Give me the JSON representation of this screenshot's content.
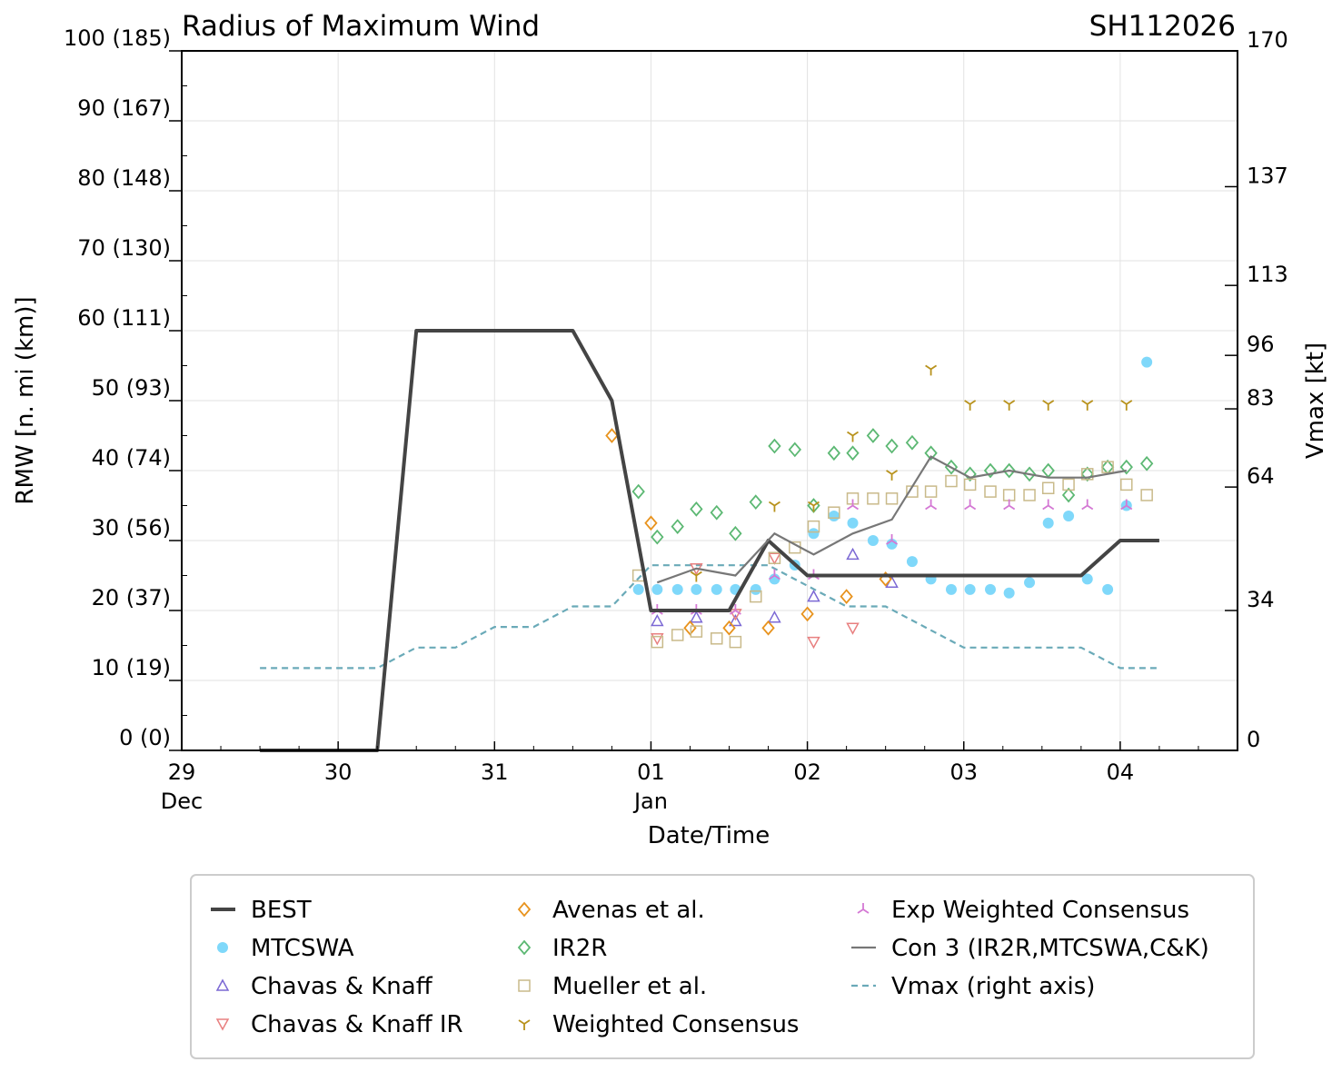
{
  "chart_data": {
    "type": "scatter",
    "title": "Radius of Maximum Wind",
    "storm_id": "SH112026",
    "xlabel": "Date/Time",
    "ylabel": "RMW [n. mi (km)]",
    "y2label": "Vmax [kt]",
    "x_units": "days since 29 Dec 00Z",
    "xlim": [
      0,
      6.75
    ],
    "ylim": [
      0,
      100
    ],
    "y2lim": [
      0,
      170
    ],
    "x_ticks": [
      {
        "x": 0,
        "label": "29",
        "sublabel": "Dec"
      },
      {
        "x": 1,
        "label": "30",
        "sublabel": ""
      },
      {
        "x": 2,
        "label": "31",
        "sublabel": ""
      },
      {
        "x": 3,
        "label": "01",
        "sublabel": "Jan"
      },
      {
        "x": 4,
        "label": "02",
        "sublabel": ""
      },
      {
        "x": 5,
        "label": "03",
        "sublabel": ""
      },
      {
        "x": 6,
        "label": "04",
        "sublabel": ""
      }
    ],
    "y_ticks": [
      {
        "v": 0,
        "label": "0 (0)"
      },
      {
        "v": 10,
        "label": "10 (19)"
      },
      {
        "v": 20,
        "label": "20 (37)"
      },
      {
        "v": 30,
        "label": "30 (56)"
      },
      {
        "v": 40,
        "label": "40 (74)"
      },
      {
        "v": 50,
        "label": "50 (93)"
      },
      {
        "v": 60,
        "label": "60 (111)"
      },
      {
        "v": 70,
        "label": "70 (130)"
      },
      {
        "v": 80,
        "label": "80 (148)"
      },
      {
        "v": 90,
        "label": "90 (167)"
      },
      {
        "v": 100,
        "label": "100 (185)"
      }
    ],
    "y2_ticks": [
      {
        "v": 0,
        "label": "0"
      },
      {
        "v": 34,
        "label": "34"
      },
      {
        "v": 64,
        "label": "64"
      },
      {
        "v": 83,
        "label": "83"
      },
      {
        "v": 96,
        "label": "96"
      },
      {
        "v": 113,
        "label": "113"
      },
      {
        "v": 137,
        "label": "137"
      },
      {
        "v": 170,
        "label": "170"
      }
    ],
    "series": [
      {
        "name": "BEST",
        "kind": "line",
        "color": "#444444",
        "axis": "left",
        "points": [
          [
            0.5,
            0
          ],
          [
            1.25,
            0
          ],
          [
            1.5,
            60
          ],
          [
            2.5,
            60
          ],
          [
            2.75,
            50
          ],
          [
            3.0,
            20
          ],
          [
            3.5,
            20
          ],
          [
            3.75,
            30
          ],
          [
            4.0,
            25
          ],
          [
            4.25,
            25
          ],
          [
            4.5,
            25
          ],
          [
            4.75,
            25
          ],
          [
            5.0,
            25
          ],
          [
            5.25,
            25
          ],
          [
            5.5,
            25
          ],
          [
            5.75,
            25
          ],
          [
            6.0,
            30
          ],
          [
            6.25,
            30
          ]
        ]
      },
      {
        "name": "MTCSWA",
        "kind": "marker",
        "marker": "circle",
        "color": "#7fd8fa",
        "axis": "left",
        "points": [
          [
            2.92,
            23
          ],
          [
            3.04,
            23
          ],
          [
            3.17,
            23
          ],
          [
            3.29,
            23
          ],
          [
            3.42,
            23
          ],
          [
            3.54,
            23
          ],
          [
            3.67,
            23
          ],
          [
            3.79,
            24.5
          ],
          [
            3.92,
            26.5
          ],
          [
            4.04,
            31
          ],
          [
            4.17,
            33.5
          ],
          [
            4.29,
            32.5
          ],
          [
            4.42,
            30
          ],
          [
            4.54,
            29.5
          ],
          [
            4.67,
            27
          ],
          [
            4.79,
            24.5
          ],
          [
            4.92,
            23
          ],
          [
            5.04,
            23
          ],
          [
            5.17,
            23
          ],
          [
            5.29,
            22.5
          ],
          [
            5.42,
            24
          ],
          [
            5.54,
            32.5
          ],
          [
            5.67,
            33.5
          ],
          [
            5.79,
            24.5
          ],
          [
            5.92,
            23
          ],
          [
            6.04,
            35
          ],
          [
            6.17,
            55.5
          ]
        ]
      },
      {
        "name": "Chavas & Knaff",
        "kind": "marker",
        "marker": "triangle-up",
        "color": "#7b68d4",
        "axis": "left",
        "points": [
          [
            3.04,
            18.5
          ],
          [
            3.29,
            19
          ],
          [
            3.54,
            18.5
          ],
          [
            3.79,
            19
          ],
          [
            4.04,
            22
          ],
          [
            4.29,
            28
          ],
          [
            4.54,
            24
          ]
        ]
      },
      {
        "name": "Chavas & Knaff IR",
        "kind": "marker",
        "marker": "triangle-down",
        "color": "#e88080",
        "axis": "left",
        "points": [
          [
            3.04,
            16
          ],
          [
            3.29,
            26
          ],
          [
            3.54,
            19.5
          ],
          [
            3.79,
            27.5
          ],
          [
            4.04,
            15.5
          ],
          [
            4.29,
            17.5
          ]
        ]
      },
      {
        "name": "Avenas et al.",
        "kind": "marker",
        "marker": "diamond",
        "color": "#e8931e",
        "axis": "left",
        "points": [
          [
            2.75,
            45
          ],
          [
            3.0,
            32.5
          ],
          [
            3.25,
            17.5
          ],
          [
            3.5,
            17.5
          ],
          [
            3.75,
            17.5
          ],
          [
            4.0,
            19.5
          ],
          [
            4.25,
            22
          ],
          [
            4.5,
            24.5
          ]
        ]
      },
      {
        "name": "IR2R",
        "kind": "marker",
        "marker": "diamond",
        "color": "#5cb873",
        "axis": "left",
        "points": [
          [
            2.92,
            37
          ],
          [
            3.04,
            30.5
          ],
          [
            3.17,
            32
          ],
          [
            3.29,
            34.5
          ],
          [
            3.42,
            34
          ],
          [
            3.54,
            31
          ],
          [
            3.67,
            35.5
          ],
          [
            3.79,
            43.5
          ],
          [
            3.92,
            43
          ],
          [
            4.04,
            35
          ],
          [
            4.17,
            42.5
          ],
          [
            4.29,
            42.5
          ],
          [
            4.42,
            45
          ],
          [
            4.54,
            43.5
          ],
          [
            4.67,
            44
          ],
          [
            4.79,
            42.5
          ],
          [
            4.92,
            40.5
          ],
          [
            5.04,
            39.5
          ],
          [
            5.17,
            40
          ],
          [
            5.29,
            40
          ],
          [
            5.42,
            39.5
          ],
          [
            5.54,
            40
          ],
          [
            5.67,
            36.5
          ],
          [
            5.79,
            39.5
          ],
          [
            5.92,
            40.5
          ],
          [
            6.04,
            40.5
          ],
          [
            6.17,
            41
          ]
        ]
      },
      {
        "name": "Mueller et al.",
        "kind": "marker",
        "marker": "square",
        "color": "#c9ba8a",
        "axis": "left",
        "points": [
          [
            2.92,
            25
          ],
          [
            3.04,
            15.5
          ],
          [
            3.17,
            16.5
          ],
          [
            3.29,
            17
          ],
          [
            3.42,
            16
          ],
          [
            3.54,
            15.5
          ],
          [
            3.67,
            22
          ],
          [
            3.79,
            27.5
          ],
          [
            3.92,
            29
          ],
          [
            4.04,
            32
          ],
          [
            4.17,
            34
          ],
          [
            4.29,
            36
          ],
          [
            4.42,
            36
          ],
          [
            4.54,
            36
          ],
          [
            4.67,
            37
          ],
          [
            4.79,
            37
          ],
          [
            4.92,
            38.5
          ],
          [
            5.04,
            38
          ],
          [
            5.17,
            37
          ],
          [
            5.29,
            36.5
          ],
          [
            5.42,
            36.5
          ],
          [
            5.54,
            37.5
          ],
          [
            5.67,
            38
          ],
          [
            5.79,
            39.5
          ],
          [
            5.92,
            40.5
          ],
          [
            6.04,
            38
          ],
          [
            6.17,
            36.5
          ]
        ]
      },
      {
        "name": "Weighted Consensus",
        "kind": "marker",
        "marker": "tri-down",
        "color": "#b8921c",
        "axis": "left",
        "points": [
          [
            3.29,
            25
          ],
          [
            3.79,
            35
          ],
          [
            4.04,
            35
          ],
          [
            4.29,
            45
          ],
          [
            4.54,
            39.5
          ],
          [
            4.79,
            54.5
          ],
          [
            5.04,
            49.5
          ],
          [
            5.29,
            49.5
          ],
          [
            5.54,
            49.5
          ],
          [
            5.79,
            49.5
          ],
          [
            6.04,
            49.5
          ]
        ]
      },
      {
        "name": "Exp Weighted Consensus",
        "kind": "marker",
        "marker": "tri-up",
        "color": "#d478d4",
        "axis": "left",
        "points": [
          [
            3.04,
            20
          ],
          [
            3.29,
            20
          ],
          [
            3.54,
            20
          ],
          [
            3.79,
            25
          ],
          [
            4.04,
            25
          ],
          [
            4.29,
            35
          ],
          [
            4.54,
            30
          ],
          [
            4.79,
            35
          ],
          [
            5.04,
            35
          ],
          [
            5.29,
            35
          ],
          [
            5.54,
            35
          ],
          [
            5.79,
            35
          ],
          [
            6.04,
            35
          ]
        ]
      },
      {
        "name": "Con 3 (IR2R,MTCSWA,C&K)",
        "kind": "line",
        "color": "#777777",
        "axis": "left",
        "points": [
          [
            3.04,
            24
          ],
          [
            3.29,
            26
          ],
          [
            3.54,
            25
          ],
          [
            3.79,
            31
          ],
          [
            4.04,
            28
          ],
          [
            4.29,
            31
          ],
          [
            4.54,
            33
          ],
          [
            4.79,
            42
          ],
          [
            5.04,
            39
          ],
          [
            5.29,
            40
          ],
          [
            5.54,
            39
          ],
          [
            5.79,
            39
          ],
          [
            6.04,
            40
          ]
        ]
      },
      {
        "name": "Vmax (right axis)",
        "kind": "dashed-line",
        "color": "#6aaab8",
        "axis": "right",
        "points": [
          [
            0.5,
            20
          ],
          [
            1.25,
            20
          ],
          [
            1.5,
            25
          ],
          [
            1.75,
            25
          ],
          [
            2.0,
            30
          ],
          [
            2.25,
            30
          ],
          [
            2.5,
            35
          ],
          [
            2.75,
            35
          ],
          [
            3.0,
            45
          ],
          [
            3.25,
            45
          ],
          [
            3.5,
            45
          ],
          [
            3.75,
            45
          ],
          [
            4.0,
            40
          ],
          [
            4.25,
            35
          ],
          [
            4.5,
            35
          ],
          [
            4.75,
            30
          ],
          [
            5.0,
            25
          ],
          [
            5.25,
            25
          ],
          [
            5.5,
            25
          ],
          [
            5.75,
            25
          ],
          [
            6.0,
            20
          ],
          [
            6.25,
            20
          ]
        ]
      }
    ],
    "legend": {
      "position": "bottom",
      "columns": 3,
      "items": [
        "BEST",
        "MTCSWA",
        "Chavas & Knaff",
        "Chavas & Knaff IR",
        "Avenas et al.",
        "IR2R",
        "Mueller et al.",
        "Weighted Consensus",
        "Exp Weighted Consensus",
        "Con 3 (IR2R,MTCSWA,C&K)",
        "Vmax (right axis)"
      ]
    }
  }
}
